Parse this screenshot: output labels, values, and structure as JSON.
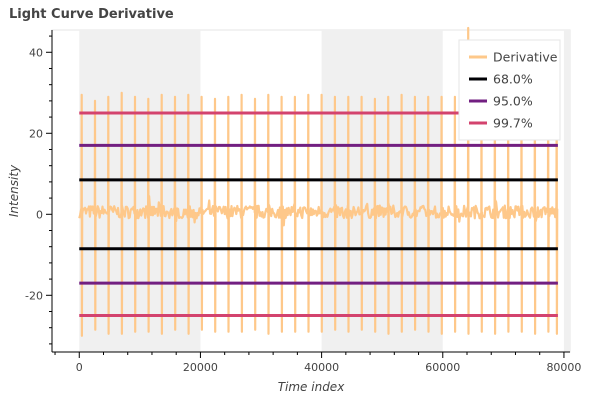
{
  "chart_data": {
    "type": "line",
    "title": "Light Curve Derivative",
    "xlabel": "Time index",
    "ylabel": "Intensity",
    "xlim": [
      -4500,
      81000
    ],
    "ylim": [
      -34,
      45.5
    ],
    "x_ticks": [
      0,
      20000,
      40000,
      60000,
      80000
    ],
    "x_tick_labels": [
      "0",
      "20000",
      "40000",
      "60000",
      "80000"
    ],
    "y_ticks": [
      -20,
      0,
      20,
      40
    ],
    "y_tick_labels": [
      "-20",
      "0",
      "20",
      "40"
    ],
    "shaded_bands": [
      [
        0,
        20000
      ],
      [
        40000,
        60000
      ],
      [
        80000,
        81000
      ]
    ],
    "legend_position": "top-right",
    "derivative": {
      "name": "Derivative",
      "color": "#fec88a",
      "x_range": [
        0,
        79000
      ],
      "spike_x": [
        400,
        2600,
        4800,
        7000,
        9200,
        11400,
        13600,
        15800,
        18000,
        20200,
        22400,
        24600,
        26800,
        29000,
        31200,
        33400,
        35600,
        37800,
        40000,
        42200,
        44400,
        46600,
        48800,
        51000,
        53200,
        55400,
        57600,
        59800,
        62000,
        64200,
        66400,
        68600,
        70800,
        73000,
        75200,
        77400,
        78800
      ],
      "spike_high": [
        29.5,
        28,
        29,
        30,
        29,
        28.5,
        29.5,
        29,
        29.5,
        29,
        28.5,
        29,
        29.5,
        28.5,
        29.5,
        29,
        29,
        29.5,
        29.5,
        29,
        29,
        29,
        28.5,
        29,
        29.5,
        29,
        29,
        29,
        29,
        46,
        29.5,
        29.5,
        29,
        29.5,
        29,
        29,
        29
      ],
      "spike_low": [
        -30,
        -28.5,
        -29.5,
        -29.5,
        -29,
        -29,
        -29.5,
        -28.5,
        -29.5,
        -28.5,
        -29,
        -29,
        -29,
        -28.5,
        -29.5,
        -29,
        -29,
        -29,
        -29,
        -28.5,
        -29,
        -28.5,
        -29,
        -29.5,
        -29,
        -28.5,
        -29,
        -29.5,
        -29,
        -29.5,
        -29,
        -29.5,
        -29,
        -29,
        -29.5,
        -29,
        -29.5
      ]
    },
    "series": [
      {
        "name": "68.0%",
        "color": "#000004",
        "values": [
          8.5,
          -8.5
        ]
      },
      {
        "name": "95.0%",
        "color": "#721f81",
        "values": [
          17,
          -17
        ]
      },
      {
        "name": "99.7%",
        "color": "#d3436e",
        "values": [
          25,
          -25
        ]
      }
    ]
  }
}
